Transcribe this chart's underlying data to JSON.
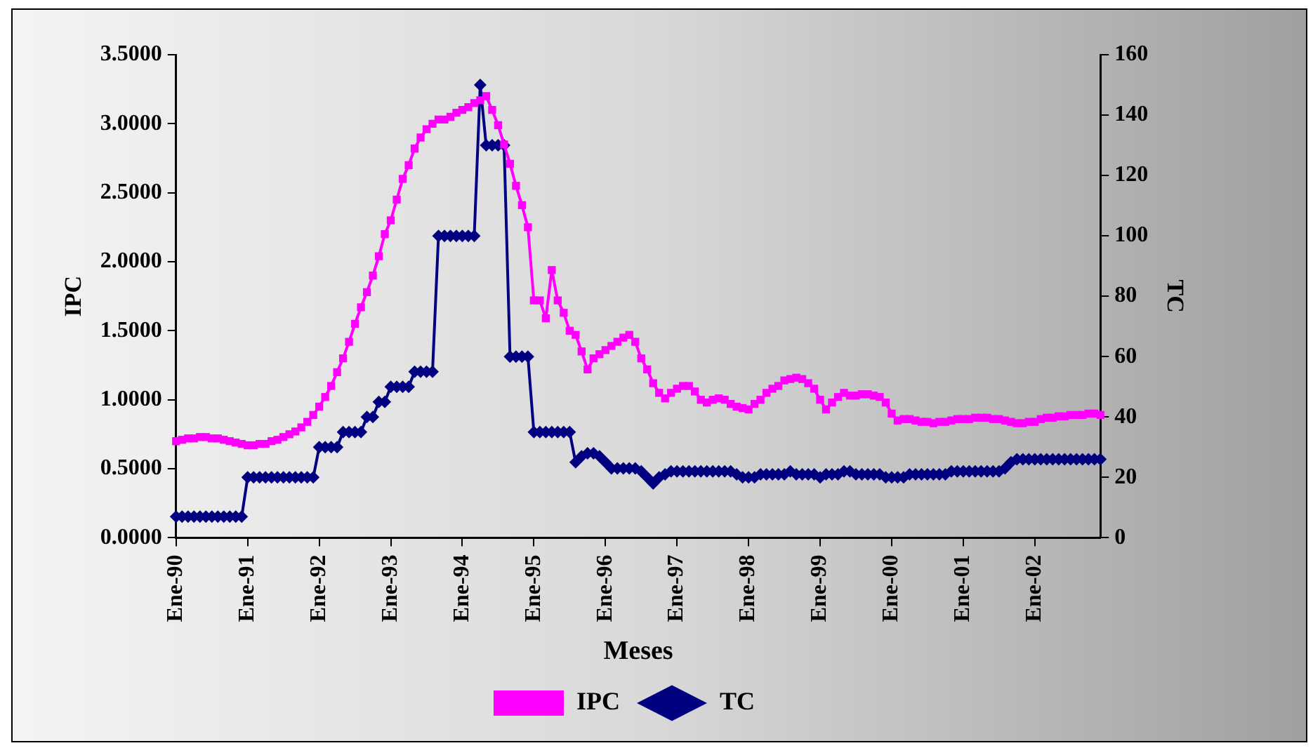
{
  "chart_data": {
    "type": "line",
    "xlabel": "Meses",
    "ylabel": "IPC",
    "y2label": "TC",
    "legend": "bottom",
    "categories": [
      "Ene-90",
      null,
      null,
      null,
      null,
      null,
      null,
      null,
      null,
      null,
      null,
      null,
      "Ene-91",
      null,
      null,
      null,
      null,
      null,
      null,
      null,
      null,
      null,
      null,
      null,
      "Ene-92",
      null,
      null,
      null,
      null,
      null,
      null,
      null,
      null,
      null,
      null,
      null,
      "Ene-93",
      null,
      null,
      null,
      null,
      null,
      null,
      null,
      null,
      null,
      null,
      null,
      "Ene-94",
      null,
      null,
      null,
      null,
      null,
      null,
      null,
      null,
      null,
      null,
      null,
      "Ene-95",
      null,
      null,
      null,
      null,
      null,
      null,
      null,
      null,
      null,
      null,
      null,
      "Ene-96",
      null,
      null,
      null,
      null,
      null,
      null,
      null,
      null,
      null,
      null,
      null,
      "Ene-97",
      null,
      null,
      null,
      null,
      null,
      null,
      null,
      null,
      null,
      null,
      null,
      "Ene-98",
      null,
      null,
      null,
      null,
      null,
      null,
      null,
      null,
      null,
      null,
      null,
      "Ene-99",
      null,
      null,
      null,
      null,
      null,
      null,
      null,
      null,
      null,
      null,
      null,
      "Ene-00",
      null,
      null,
      null,
      null,
      null,
      null,
      null,
      null,
      null,
      null,
      null,
      "Ene-01",
      null,
      null,
      null,
      null,
      null,
      null,
      null,
      null,
      null,
      null,
      null,
      "Ene-02",
      null,
      null,
      null,
      null,
      null,
      null,
      null,
      null,
      null,
      null,
      null
    ],
    "ylim": [
      0,
      3.5
    ],
    "yticks": [
      {
        "value": 0,
        "label": "0.0000"
      },
      {
        "value": 0.5,
        "label": "0.5000"
      },
      {
        "value": 1,
        "label": "1.0000"
      },
      {
        "value": 1.5,
        "label": "1.5000"
      },
      {
        "value": 2,
        "label": "2.0000"
      },
      {
        "value": 2.5,
        "label": "2.5000"
      },
      {
        "value": 3,
        "label": "3.0000"
      },
      {
        "value": 3.5,
        "label": "3.5000"
      }
    ],
    "y2lim": [
      0,
      160
    ],
    "y2ticks": [
      0,
      20,
      40,
      60,
      80,
      100,
      120,
      140,
      160
    ],
    "series": [
      {
        "name": "IPC",
        "color": "#ff00ff",
        "marker": "square",
        "values": [
          0.7,
          0.71,
          0.72,
          0.72,
          0.73,
          0.73,
          0.72,
          0.72,
          0.71,
          0.7,
          0.69,
          0.68,
          0.67,
          0.67,
          0.68,
          0.68,
          0.7,
          0.71,
          0.73,
          0.75,
          0.77,
          0.8,
          0.84,
          0.89,
          0.95,
          1.02,
          1.1,
          1.2,
          1.3,
          1.42,
          1.55,
          1.67,
          1.78,
          1.9,
          2.04,
          2.2,
          2.3,
          2.45,
          2.6,
          2.7,
          2.82,
          2.9,
          2.96,
          3.0,
          3.03,
          3.03,
          3.05,
          3.08,
          3.1,
          3.12,
          3.15,
          3.17,
          3.2,
          3.1,
          2.99,
          2.85,
          2.71,
          2.55,
          2.41,
          2.25,
          1.72,
          1.72,
          1.59,
          1.94,
          1.72,
          1.63,
          1.5,
          1.47,
          1.35,
          1.22,
          1.3,
          1.33,
          1.36,
          1.39,
          1.42,
          1.45,
          1.47,
          1.42,
          1.3,
          1.22,
          1.12,
          1.05,
          1.01,
          1.05,
          1.08,
          1.1,
          1.1,
          1.06,
          1.0,
          0.98,
          1.0,
          1.01,
          1.0,
          0.97,
          0.95,
          0.94,
          0.93,
          0.97,
          1.0,
          1.05,
          1.08,
          1.1,
          1.14,
          1.15,
          1.16,
          1.15,
          1.12,
          1.08,
          1.0,
          0.93,
          0.98,
          1.02,
          1.05,
          1.03,
          1.03,
          1.04,
          1.04,
          1.03,
          1.02,
          0.98,
          0.9,
          0.85,
          0.86,
          0.86,
          0.85,
          0.84,
          0.84,
          0.83,
          0.84,
          0.84,
          0.85,
          0.86,
          0.86,
          0.86,
          0.87,
          0.87,
          0.87,
          0.86,
          0.86,
          0.85,
          0.84,
          0.83,
          0.83,
          0.84,
          0.84,
          0.86,
          0.87,
          0.87,
          0.88,
          0.88,
          0.89,
          0.89,
          0.89,
          0.9,
          0.9,
          0.89
        ]
      },
      {
        "name": "TC",
        "color": "#000080",
        "marker": "diamond",
        "axis": "y2",
        "values": [
          7,
          7,
          7,
          7,
          7,
          7,
          7,
          7,
          7,
          7,
          7,
          7,
          20,
          20,
          20,
          20,
          20,
          20,
          20,
          20,
          20,
          20,
          20,
          20,
          30,
          30,
          30,
          30,
          35,
          35,
          35,
          35,
          40,
          40,
          45,
          45,
          50,
          50,
          50,
          50,
          55,
          55,
          55,
          55,
          100,
          100,
          100,
          100,
          100,
          100,
          100,
          150,
          130,
          130,
          130,
          130,
          60,
          60,
          60,
          60,
          35,
          35,
          35,
          35,
          35,
          35,
          35,
          25,
          27,
          28,
          28,
          27,
          25,
          23,
          23,
          23,
          23,
          23,
          22,
          20,
          18,
          20,
          21,
          22,
          22,
          22,
          22,
          22,
          22,
          22,
          22,
          22,
          22,
          22,
          21,
          20,
          20,
          20,
          21,
          21,
          21,
          21,
          21,
          22,
          21,
          21,
          21,
          21,
          20,
          21,
          21,
          21,
          22,
          22,
          21,
          21,
          21,
          21,
          21,
          20,
          20,
          20,
          20,
          21,
          21,
          21,
          21,
          21,
          21,
          21,
          22,
          22,
          22,
          22,
          22,
          22,
          22,
          22,
          22,
          23,
          25,
          26,
          26,
          26,
          26,
          26,
          26,
          26,
          26,
          26,
          26,
          26,
          26,
          26,
          26,
          26
        ]
      }
    ]
  }
}
